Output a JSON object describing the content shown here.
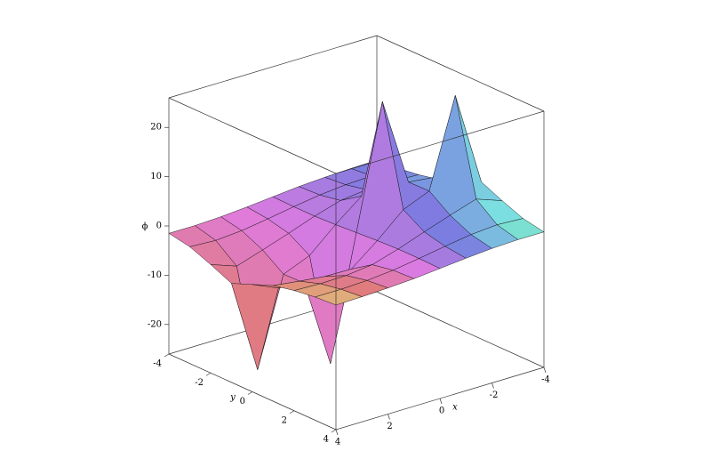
{
  "chart_data": {
    "type": "surface",
    "xlabel": "x",
    "ylabel": "y",
    "zlabel": "ϕ",
    "x": [
      -4,
      -3,
      -2,
      -1,
      0,
      1,
      2,
      3,
      4
    ],
    "y": [
      -4,
      -3,
      -2,
      -1,
      0,
      1,
      2,
      3,
      4
    ],
    "z": [
      [
        0.7,
        0.6,
        0.4,
        0.1,
        -0.4,
        -0.9,
        -1.3,
        -1.5,
        -1.5
      ],
      [
        1.0,
        1.0,
        0.8,
        0.3,
        -0.5,
        -1.4,
        -2.2,
        -2.6,
        -2.3
      ],
      [
        1.6,
        1.8,
        1.7,
        1.1,
        -0.5,
        -2.4,
        -4.2,
        -5.9,
        -4.0
      ],
      [
        2.5,
        3.2,
        3.8,
        3.9,
        -0.3,
        -5.0,
        -7.2,
        -25,
        -5.9
      ],
      [
        4.2,
        6.5,
        7.1,
        25,
        0.0,
        -25,
        -7.1,
        -6.5,
        -4.2
      ],
      [
        5.9,
        25,
        7.2,
        5.0,
        0.3,
        -3.9,
        -3.8,
        -3.2,
        -2.5
      ],
      [
        4.0,
        5.9,
        4.2,
        2.4,
        0.5,
        -1.1,
        -1.7,
        -1.8,
        -1.6
      ],
      [
        2.3,
        2.6,
        2.2,
        1.4,
        0.5,
        -0.3,
        -0.8,
        -1.0,
        -1.0
      ],
      [
        1.5,
        1.5,
        1.3,
        0.9,
        0.4,
        -0.1,
        -0.4,
        -0.6,
        -0.7
      ]
    ],
    "xlim": [
      -4,
      4
    ],
    "ylim": [
      -4,
      4
    ],
    "zlim": [
      -26,
      26
    ],
    "xticks": [
      -4,
      -2,
      0,
      2,
      4
    ],
    "yticks": [
      -4,
      -2,
      0,
      2,
      4
    ],
    "zticks": [
      -20,
      -10,
      0,
      10,
      20
    ]
  }
}
